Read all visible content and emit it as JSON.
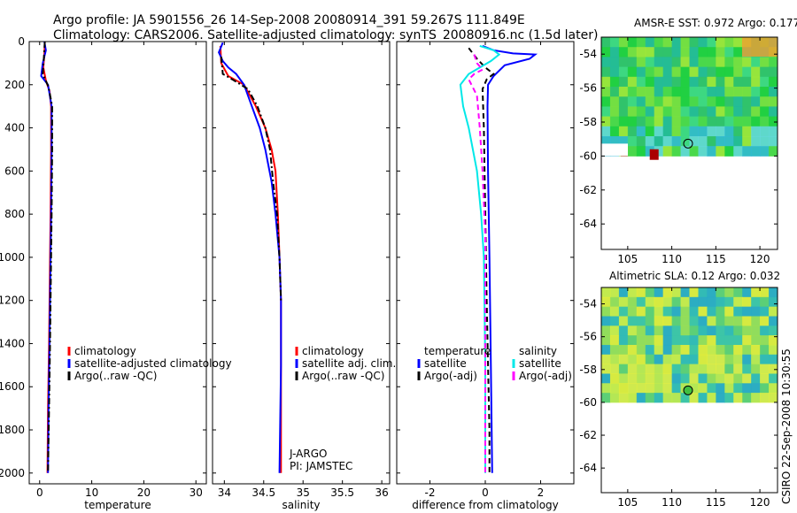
{
  "header": {
    "line1": "Argo profile: JA 5901556_26 14-Sep-2008 20080914_391 59.267S 111.849E",
    "line2": "Climatology: CARS2006. Satellite-adjusted climatology: synTS_20080916.nc (1.5d later)"
  },
  "credit": "CSIRO 22-Sep-2008 10:30:55",
  "colors": {
    "climatology": "#ff0000",
    "satellite": "#0000ff",
    "argo": "#000000",
    "satellite_diff_salinity": "#00e8e8",
    "argo_diff_salinity": "#ff00ff"
  },
  "chart_data": [
    {
      "type": "line",
      "panel": "temperature",
      "xlabel": "temperature",
      "ylabel": "",
      "xlim": [
        -2,
        32
      ],
      "ylim": [
        2050,
        0
      ],
      "xticks": [
        0,
        10,
        20,
        30
      ],
      "yticks": [
        0,
        200,
        400,
        600,
        800,
        1000,
        1200,
        1400,
        1600,
        1800,
        2000
      ],
      "legend_placement": "lower-center",
      "series": [
        {
          "name": "climatology",
          "color": "#ff0000",
          "style": "solid",
          "points": [
            [
              1.0,
              0
            ],
            [
              0.9,
              60
            ],
            [
              0.7,
              120
            ],
            [
              1.2,
              180
            ],
            [
              1.9,
              230
            ],
            [
              2.2,
              300
            ],
            [
              2.2,
              500
            ],
            [
              2.1,
              800
            ],
            [
              2.0,
              1000
            ],
            [
              1.8,
              1400
            ],
            [
              1.6,
              1700
            ],
            [
              1.5,
              2000
            ]
          ]
        },
        {
          "name": "satellite-adjusted climatology",
          "color": "#0000ff",
          "style": "solid",
          "points": [
            [
              0.9,
              0
            ],
            [
              1.2,
              40
            ],
            [
              0.6,
              100
            ],
            [
              0.3,
              160
            ],
            [
              1.6,
              200
            ],
            [
              2.3,
              300
            ],
            [
              2.3,
              500
            ],
            [
              2.2,
              800
            ],
            [
              2.1,
              1000
            ],
            [
              1.9,
              1400
            ],
            [
              1.7,
              1700
            ],
            [
              1.6,
              2000
            ]
          ]
        },
        {
          "name": "Argo(..raw -QC)",
          "color": "#000000",
          "style": "dashdot",
          "points": [
            [
              1.0,
              0
            ],
            [
              0.8,
              80
            ],
            [
              0.6,
              150
            ],
            [
              1.7,
              210
            ],
            [
              2.4,
              300
            ],
            [
              2.4,
              500
            ],
            [
              2.3,
              800
            ],
            [
              2.2,
              1000
            ],
            [
              2.0,
              1400
            ],
            [
              1.8,
              1700
            ],
            [
              1.6,
              2000
            ]
          ]
        }
      ]
    },
    {
      "type": "line",
      "panel": "salinity",
      "xlabel": "salinity",
      "ylabel": "",
      "xlim": [
        33.85,
        36.1
      ],
      "ylim": [
        2050,
        0
      ],
      "xticks": [
        34,
        34.5,
        35,
        35.5,
        36
      ],
      "legend_placement": "lower-center",
      "annotations": [
        "J-ARGO",
        "PI: JAMSTEC"
      ],
      "series": [
        {
          "name": "climatology",
          "color": "#ff0000",
          "style": "solid",
          "points": [
            [
              33.95,
              20
            ],
            [
              33.96,
              100
            ],
            [
              34.05,
              160
            ],
            [
              34.25,
              200
            ],
            [
              34.4,
              300
            ],
            [
              34.52,
              400
            ],
            [
              34.6,
              500
            ],
            [
              34.65,
              600
            ],
            [
              34.68,
              800
            ],
            [
              34.7,
              1000
            ],
            [
              34.72,
              1200
            ],
            [
              34.72,
              1500
            ],
            [
              34.72,
              2000
            ]
          ]
        },
        {
          "name": "satellite adj. clim.",
          "color": "#0000ff",
          "style": "solid",
          "points": [
            [
              33.98,
              5
            ],
            [
              33.93,
              50
            ],
            [
              33.98,
              90
            ],
            [
              34.05,
              120
            ],
            [
              34.15,
              150
            ],
            [
              34.25,
              200
            ],
            [
              34.35,
              300
            ],
            [
              34.45,
              400
            ],
            [
              34.52,
              500
            ],
            [
              34.6,
              650
            ],
            [
              34.65,
              800
            ],
            [
              34.7,
              1000
            ],
            [
              34.72,
              1200
            ],
            [
              34.72,
              1500
            ],
            [
              34.7,
              2000
            ]
          ]
        },
        {
          "name": "Argo(..raw -QC)",
          "color": "#000000",
          "style": "dashdot",
          "points": [
            [
              33.96,
              70
            ],
            [
              33.98,
              150
            ],
            [
              34.1,
              175
            ],
            [
              34.3,
              220
            ],
            [
              34.42,
              300
            ],
            [
              34.52,
              400
            ],
            [
              34.58,
              500
            ],
            [
              34.62,
              650
            ],
            [
              34.67,
              800
            ],
            [
              34.7,
              1000
            ],
            [
              34.72,
              1200
            ]
          ]
        }
      ]
    },
    {
      "type": "line",
      "panel": "difference",
      "xlabel": "difference from climatology",
      "ylabel": "",
      "xlim": [
        -3.2,
        3.2
      ],
      "ylim": [
        2050,
        0
      ],
      "xticks": [
        -2,
        0,
        2
      ],
      "legend_placement": "lower-center",
      "legend_group_titles": [
        "temperature",
        "salinity"
      ],
      "series": [
        {
          "name": "satellite",
          "group": "temperature",
          "color": "#0000ff",
          "style": "solid",
          "points": [
            [
              -0.1,
              20
            ],
            [
              0.3,
              40
            ],
            [
              1.0,
              55
            ],
            [
              1.8,
              60
            ],
            [
              1.6,
              80
            ],
            [
              0.7,
              110
            ],
            [
              0.3,
              160
            ],
            [
              0.1,
              200
            ],
            [
              0.08,
              300
            ],
            [
              0.1,
              600
            ],
            [
              0.15,
              1000
            ],
            [
              0.2,
              1500
            ],
            [
              0.25,
              2000
            ]
          ]
        },
        {
          "name": "Argo(-adj)",
          "group": "temperature",
          "color": "#000000",
          "style": "dashed",
          "points": [
            [
              -0.6,
              30
            ],
            [
              -0.3,
              80
            ],
            [
              0.0,
              120
            ],
            [
              0.3,
              150
            ],
            [
              0.05,
              175
            ],
            [
              -0.1,
              220
            ],
            [
              -0.05,
              400
            ],
            [
              0.0,
              800
            ],
            [
              0.05,
              1200
            ],
            [
              0.1,
              1500
            ],
            [
              0.15,
              1800
            ],
            [
              0.15,
              2000
            ]
          ]
        },
        {
          "name": "satellite",
          "group": "salinity",
          "color": "#00e8e8",
          "style": "solid",
          "points": [
            [
              -0.2,
              20
            ],
            [
              0.3,
              40
            ],
            [
              0.5,
              60
            ],
            [
              0.2,
              90
            ],
            [
              -0.6,
              150
            ],
            [
              -0.9,
              200
            ],
            [
              -0.8,
              300
            ],
            [
              -0.6,
              400
            ],
            [
              -0.3,
              600
            ],
            [
              -0.15,
              800
            ],
            [
              -0.05,
              1000
            ],
            [
              0.0,
              1500
            ],
            [
              0.0,
              2000
            ]
          ]
        },
        {
          "name": "Argo(-adj)",
          "group": "salinity",
          "color": "#ff00ff",
          "style": "dashed",
          "points": [
            [
              -0.4,
              60
            ],
            [
              -0.3,
              100
            ],
            [
              -0.1,
              130
            ],
            [
              -0.4,
              150
            ],
            [
              -0.6,
              175
            ],
            [
              -0.3,
              250
            ],
            [
              -0.2,
              400
            ],
            [
              -0.1,
              600
            ],
            [
              0.0,
              900
            ],
            [
              0.0,
              2000
            ]
          ]
        }
      ]
    },
    {
      "type": "heatmap",
      "panel": "AMSR-E SST map",
      "title": "AMSR-E SST: 0.972 Argo: 0.177",
      "xlim": [
        102,
        122
      ],
      "ylim": [
        -65.5,
        -53
      ],
      "xticks": [
        105,
        110,
        115,
        120
      ],
      "yticks": [
        -54,
        -56,
        -58,
        -60,
        -62,
        -64
      ],
      "data_lat_min": -60,
      "marker": [
        111.849,
        -59.267
      ]
    },
    {
      "type": "heatmap",
      "panel": "Altimetric SLA map",
      "title": "Altimetric SLA: 0.12 Argo: 0.032",
      "xlim": [
        102,
        122
      ],
      "ylim": [
        -65.5,
        -53
      ],
      "xticks": [
        105,
        110,
        115,
        120
      ],
      "yticks": [
        -54,
        -56,
        -58,
        -60,
        -62,
        -64
      ],
      "data_lat_min": -60,
      "marker": [
        111.849,
        -59.267
      ]
    }
  ],
  "legends": [
    {
      "entries": [
        {
          "label": "climatology",
          "color": "#ff0000"
        },
        {
          "label": "satellite-adjusted climatology",
          "color": "#0000ff"
        },
        {
          "label": "Argo(..raw -QC)",
          "color": "#000000"
        }
      ]
    },
    {
      "entries": [
        {
          "label": "climatology",
          "color": "#ff0000"
        },
        {
          "label": "satellite adj. clim.",
          "color": "#0000ff"
        },
        {
          "label": "Argo(..raw -QC)",
          "color": "#000000"
        }
      ]
    },
    {
      "groups": [
        {
          "title": "temperature",
          "entries": [
            {
              "label": "satellite",
              "color": "#0000ff"
            },
            {
              "label": "Argo(-adj)",
              "color": "#000000"
            }
          ]
        },
        {
          "title": "salinity",
          "entries": [
            {
              "label": "satellite",
              "color": "#00e8e8"
            },
            {
              "label": "Argo(-adj)",
              "color": "#ff00ff"
            }
          ]
        }
      ]
    }
  ]
}
